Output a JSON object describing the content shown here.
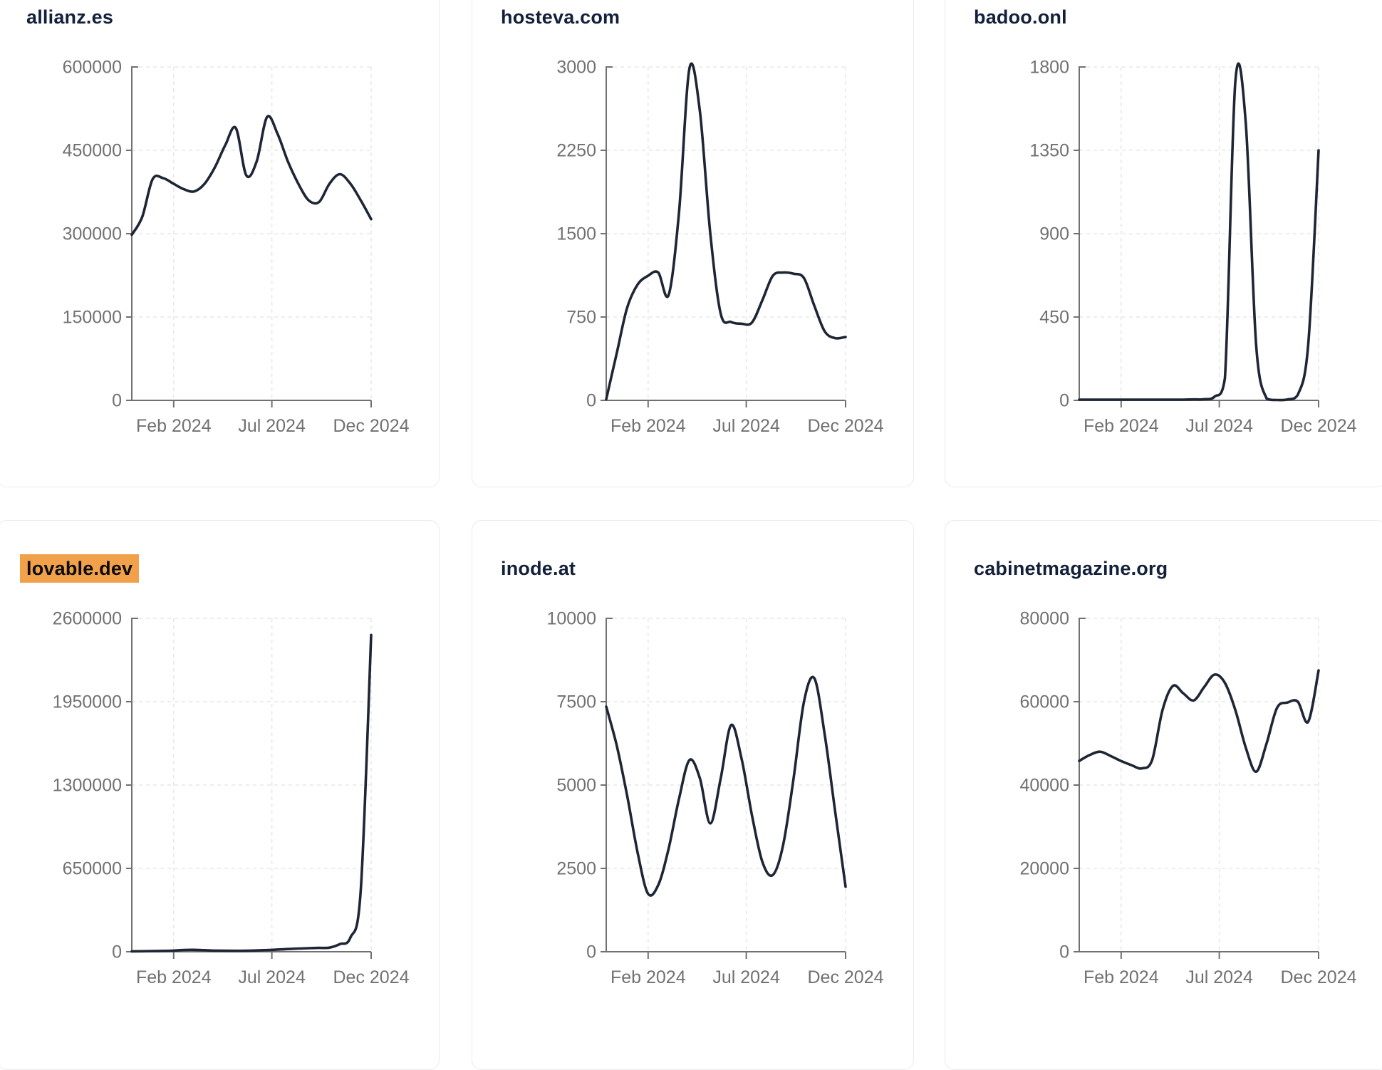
{
  "style": {
    "line_color": "#1e2636",
    "title_color": "#13203a",
    "label_color": "#717171",
    "axis_color": "#717171",
    "grid_color": "#e7e7e7",
    "highlight_color": "#f2a14b",
    "card_border": "#e8ebf1",
    "background": "#ffffff"
  },
  "chart_data": [
    {
      "type": "line",
      "title": "allianz.es",
      "highlighted": false,
      "x_domain": [
        "Jan 2024",
        "Dec 2024"
      ],
      "x_tick_labels": [
        "Feb 2024",
        "Jul 2024",
        "Dec 2024"
      ],
      "x_tick_positions": [
        0.175,
        0.585,
        1.0
      ],
      "y_ticks": [
        0,
        150000,
        300000,
        450000,
        600000
      ],
      "ylim": [
        0,
        600000
      ],
      "grid": true,
      "values": [
        298000,
        330000,
        398000,
        400000,
        390000,
        380000,
        376000,
        390000,
        420000,
        460000,
        490000,
        405000,
        430000,
        510000,
        480000,
        430000,
        390000,
        360000,
        357000,
        390000,
        407000,
        390000,
        360000,
        326000
      ]
    },
    {
      "type": "line",
      "title": "hosteva.com",
      "highlighted": false,
      "x_domain": [
        "Jan 2024",
        "Dec 2024"
      ],
      "x_tick_labels": [
        "Feb 2024",
        "Jul 2024",
        "Dec 2024"
      ],
      "x_tick_positions": [
        0.175,
        0.585,
        1.0
      ],
      "y_ticks": [
        0,
        750,
        1500,
        2250,
        3000
      ],
      "ylim": [
        0,
        3000
      ],
      "grid": true,
      "values": [
        10,
        420,
        830,
        1040,
        1120,
        1150,
        950,
        1700,
        2990,
        2600,
        1500,
        780,
        705,
        690,
        700,
        900,
        1120,
        1150,
        1140,
        1100,
        850,
        620,
        560,
        570
      ]
    },
    {
      "type": "line",
      "title": "badoo.onl",
      "highlighted": false,
      "x_domain": [
        "Jan 2024",
        "Dec 2024"
      ],
      "x_tick_labels": [
        "Feb 2024",
        "Jul 2024",
        "Dec 2024"
      ],
      "x_tick_positions": [
        0.175,
        0.585,
        1.0
      ],
      "y_ticks": [
        0,
        450,
        900,
        1350,
        1800
      ],
      "ylim": [
        0,
        1800
      ],
      "grid": true,
      "values": [
        4,
        4,
        4,
        4,
        4,
        4,
        4,
        4,
        4,
        4,
        4,
        5,
        6,
        20,
        120,
        1720,
        1500,
        300,
        10,
        2,
        5,
        30,
        300,
        1350
      ]
    },
    {
      "type": "line",
      "title": "lovable.dev",
      "highlighted": true,
      "x_domain": [
        "Jan 2024",
        "Dec 2024"
      ],
      "x_tick_labels": [
        "Feb 2024",
        "Jul 2024",
        "Dec 2024"
      ],
      "x_tick_positions": [
        0.175,
        0.585,
        1.0
      ],
      "y_ticks": [
        0,
        650000,
        1300000,
        1950000,
        2600000
      ],
      "ylim": [
        0,
        2600000
      ],
      "grid": true,
      "values": [
        3000,
        4000,
        5000,
        6500,
        9000,
        14000,
        15000,
        12000,
        9000,
        8000,
        7000,
        8000,
        10000,
        13000,
        17000,
        21000,
        25000,
        28000,
        30000,
        32000,
        60000,
        110000,
        480000,
        2470000
      ]
    },
    {
      "type": "line",
      "title": "inode.at",
      "highlighted": false,
      "x_domain": [
        "Jan 2024",
        "Dec 2024"
      ],
      "x_tick_labels": [
        "Feb 2024",
        "Jul 2024",
        "Dec 2024"
      ],
      "x_tick_positions": [
        0.175,
        0.585,
        1.0
      ],
      "y_ticks": [
        0,
        2500,
        5000,
        7500,
        10000
      ],
      "ylim": [
        0,
        10000
      ],
      "grid": true,
      "values": [
        7350,
        6200,
        4700,
        3000,
        1750,
        2000,
        3100,
        4600,
        5750,
        5200,
        3850,
        5200,
        6800,
        5800,
        4100,
        2700,
        2300,
        3200,
        5200,
        7500,
        8200,
        6500,
        4200,
        1950
      ]
    },
    {
      "type": "line",
      "title": "cabinetmagazine.org",
      "highlighted": false,
      "x_domain": [
        "Jan 2024",
        "Dec 2024"
      ],
      "x_tick_labels": [
        "Feb 2024",
        "Jul 2024",
        "Dec 2024"
      ],
      "x_tick_positions": [
        0.175,
        0.585,
        1.0
      ],
      "y_ticks": [
        0,
        20000,
        40000,
        60000,
        80000
      ],
      "ylim": [
        0,
        80000
      ],
      "grid": true,
      "values": [
        45800,
        47200,
        48000,
        47000,
        45800,
        44800,
        44000,
        46000,
        58000,
        63800,
        62000,
        60300,
        63500,
        66500,
        64500,
        58000,
        49000,
        43200,
        50000,
        58500,
        59800,
        60000,
        55200,
        67500
      ]
    }
  ]
}
